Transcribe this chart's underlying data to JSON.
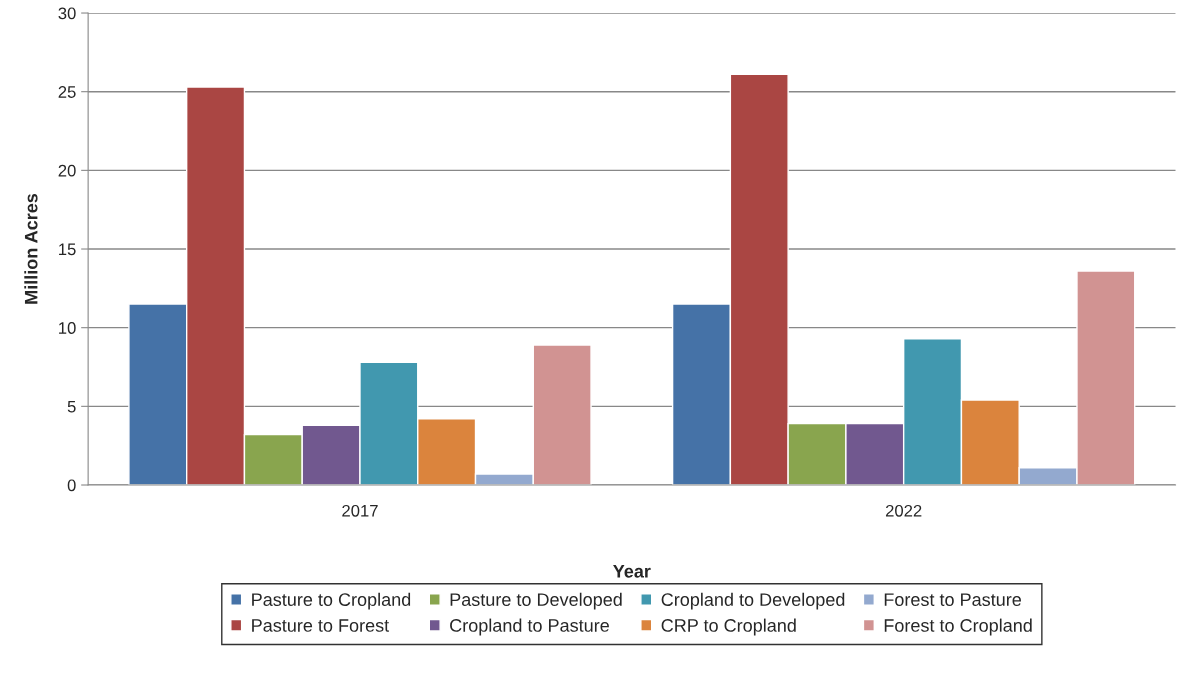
{
  "chart_data": {
    "type": "bar",
    "xlabel": "Year",
    "ylabel": "Million Acres",
    "categories": [
      "2017",
      "2022"
    ],
    "series": [
      {
        "name": "Pasture to Cropland",
        "color": "#4572a7",
        "values": [
          11.5,
          11.5
        ]
      },
      {
        "name": "Pasture to Forest",
        "color": "#aa4643",
        "values": [
          25.3,
          26.1
        ]
      },
      {
        "name": "Pasture to Developed",
        "color": "#89a54e",
        "values": [
          3.2,
          3.9
        ]
      },
      {
        "name": "Cropland to Pasture",
        "color": "#71588f",
        "values": [
          3.8,
          3.9
        ]
      },
      {
        "name": "Cropland to Developed",
        "color": "#4198af",
        "values": [
          7.8,
          9.3
        ]
      },
      {
        "name": "CRP to Cropland",
        "color": "#db843d",
        "values": [
          4.2,
          5.4
        ]
      },
      {
        "name": "Forest to Pasture",
        "color": "#93a9cf",
        "values": [
          0.7,
          1.1
        ]
      },
      {
        "name": "Forest to Cropland",
        "color": "#d19392",
        "values": [
          8.9,
          13.6
        ]
      }
    ],
    "ylim": [
      0,
      30
    ],
    "yticks": [
      0,
      5,
      10,
      15,
      20,
      25,
      30
    ],
    "grid": "y",
    "legend": "bottom"
  }
}
